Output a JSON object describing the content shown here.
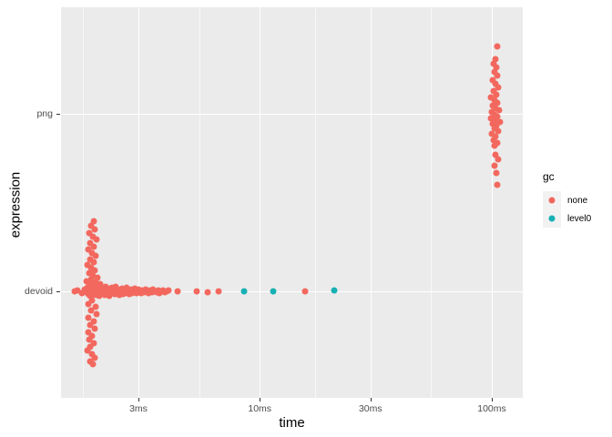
{
  "colors": {
    "panel_bg": "#EBEBEB",
    "grid": "#FFFFFF",
    "tick_text": "#4D4D4D",
    "axis_title_text": "#000000",
    "legend_key_bg": "#F2F2F2",
    "series_none": "#F3685E",
    "series_level0": "#17B0B4"
  },
  "legend": {
    "title": "gc",
    "items": [
      {
        "label": "none",
        "color": "#F3685E"
      },
      {
        "label": "level0",
        "color": "#17B0B4"
      }
    ]
  },
  "chart_data": {
    "type": "scatter",
    "title": "",
    "xlabel": "time",
    "ylabel": "expression",
    "x_scale": "log10",
    "x_unit": "ms",
    "x_range_ms": [
      1.4,
      140
    ],
    "grid": "on",
    "legend_position": "right",
    "x_ticks": [
      {
        "label": "3ms",
        "value": 3
      },
      {
        "label": "10ms",
        "value": 10
      },
      {
        "label": "30ms",
        "value": 30
      },
      {
        "label": "100ms",
        "value": 100
      }
    ],
    "x_minor_values": [
      1.73,
      5.48,
      17.32,
      54.77
    ],
    "y_categories": [
      "png",
      "devoid"
    ],
    "point_format": "[time_ms, y_jitter_px]",
    "series": [
      {
        "name": "none",
        "color": "#F3685E",
        "points": {
          "devoid": [
            [
              1.59,
              0
            ],
            [
              1.64,
              -1
            ],
            [
              1.71,
              2
            ],
            [
              1.76,
              -2
            ],
            [
              1.79,
              1
            ],
            [
              1.81,
              -4
            ],
            [
              1.83,
              3
            ],
            [
              1.84,
              -1
            ],
            [
              1.86,
              5
            ],
            [
              1.88,
              -6
            ],
            [
              1.88,
              2
            ],
            [
              1.9,
              -3
            ],
            [
              1.91,
              4
            ],
            [
              1.91,
              -1
            ],
            [
              1.93,
              1
            ],
            [
              1.95,
              -5
            ],
            [
              1.95,
              3
            ],
            [
              1.97,
              0
            ],
            [
              1.98,
              -3
            ],
            [
              1.98,
              4
            ],
            [
              2.0,
              -1
            ],
            [
              2.02,
              2
            ],
            [
              2.02,
              -6
            ],
            [
              2.04,
              5
            ],
            [
              2.06,
              -2
            ],
            [
              2.06,
              1
            ],
            [
              2.08,
              -4
            ],
            [
              2.1,
              3
            ],
            [
              2.1,
              0
            ],
            [
              2.12,
              -2
            ],
            [
              2.14,
              4
            ],
            [
              2.16,
              -5
            ],
            [
              2.16,
              1
            ],
            [
              2.18,
              -1
            ],
            [
              2.2,
              3
            ],
            [
              2.22,
              -3
            ],
            [
              2.22,
              0
            ],
            [
              2.24,
              5
            ],
            [
              2.26,
              -2
            ],
            [
              2.28,
              2
            ],
            [
              2.3,
              -4
            ],
            [
              2.33,
              1
            ],
            [
              2.35,
              -1
            ],
            [
              2.37,
              3
            ],
            [
              2.39,
              -5
            ],
            [
              2.41,
              0
            ],
            [
              2.43,
              2
            ],
            [
              2.46,
              -2
            ],
            [
              2.48,
              4
            ],
            [
              2.5,
              -1
            ],
            [
              2.52,
              1
            ],
            [
              2.55,
              -3
            ],
            [
              2.57,
              3
            ],
            [
              2.59,
              0
            ],
            [
              2.62,
              -2
            ],
            [
              2.64,
              2
            ],
            [
              2.66,
              -4
            ],
            [
              2.69,
              1
            ],
            [
              2.71,
              -1
            ],
            [
              2.74,
              3
            ],
            [
              2.76,
              0
            ],
            [
              2.78,
              -2
            ],
            [
              2.81,
              2
            ],
            [
              2.83,
              -1
            ],
            [
              2.86,
              1
            ],
            [
              2.89,
              -3
            ],
            [
              2.91,
              0
            ],
            [
              2.94,
              2
            ],
            [
              2.96,
              -1
            ],
            [
              2.99,
              1
            ],
            [
              3.01,
              -2
            ],
            [
              3.04,
              0
            ],
            [
              3.09,
              2
            ],
            [
              3.12,
              -1
            ],
            [
              3.18,
              1
            ],
            [
              3.23,
              -2
            ],
            [
              3.26,
              0
            ],
            [
              3.32,
              2
            ],
            [
              3.38,
              -1
            ],
            [
              3.44,
              1
            ],
            [
              3.47,
              -2
            ],
            [
              3.53,
              0
            ],
            [
              3.6,
              1
            ],
            [
              3.66,
              -1
            ],
            [
              3.7,
              2
            ],
            [
              3.76,
              0
            ],
            [
              3.83,
              -1
            ],
            [
              3.9,
              1
            ],
            [
              3.96,
              0
            ],
            [
              4.03,
              -1
            ],
            [
              4.43,
              0
            ],
            [
              5.33,
              0
            ],
            [
              5.97,
              1
            ],
            [
              6.62,
              0
            ],
            [
              15.7,
              0
            ],
            [
              1.93,
              -77
            ],
            [
              1.88,
              -72
            ],
            [
              1.95,
              -68
            ],
            [
              1.84,
              -64
            ],
            [
              1.91,
              -60
            ],
            [
              1.98,
              -57
            ],
            [
              1.86,
              -53
            ],
            [
              1.93,
              -49
            ],
            [
              1.83,
              -46
            ],
            [
              1.9,
              -42
            ],
            [
              1.97,
              -39
            ],
            [
              1.86,
              -35
            ],
            [
              1.93,
              -32
            ],
            [
              1.81,
              -29
            ],
            [
              1.88,
              -26
            ],
            [
              1.95,
              -23
            ],
            [
              1.84,
              -20
            ],
            [
              1.91,
              -17
            ],
            [
              2.0,
              -15
            ],
            [
              1.88,
              -13
            ],
            [
              1.79,
              -11
            ],
            [
              1.97,
              -10
            ],
            [
              1.86,
              -8
            ],
            [
              2.06,
              -8
            ],
            [
              1.9,
              10
            ],
            [
              1.83,
              14
            ],
            [
              1.97,
              17
            ],
            [
              1.88,
              21
            ],
            [
              1.98,
              25
            ],
            [
              1.83,
              29
            ],
            [
              1.93,
              33
            ],
            [
              1.86,
              37
            ],
            [
              1.95,
              41
            ],
            [
              1.83,
              45
            ],
            [
              1.9,
              49
            ],
            [
              1.84,
              53
            ],
            [
              1.93,
              57
            ],
            [
              1.86,
              61
            ],
            [
              1.81,
              65
            ],
            [
              1.9,
              69
            ],
            [
              1.95,
              73
            ],
            [
              1.86,
              77
            ],
            [
              1.91,
              80
            ]
          ],
          "png": [
            [
              105.6,
              -74
            ],
            [
              103.7,
              -60
            ],
            [
              101.8,
              -55
            ],
            [
              104.6,
              -51
            ],
            [
              102.7,
              -46
            ],
            [
              105.6,
              -42
            ],
            [
              100.9,
              -37
            ],
            [
              103.7,
              -33
            ],
            [
              106.5,
              -29
            ],
            [
              101.8,
              -25
            ],
            [
              104.6,
              -21
            ],
            [
              99.1,
              -18
            ],
            [
              102.7,
              -15
            ],
            [
              105.6,
              -12
            ],
            [
              100.9,
              -9
            ],
            [
              103.7,
              -6
            ],
            [
              107.5,
              -4
            ],
            [
              100.0,
              -2
            ],
            [
              102.7,
              1
            ],
            [
              105.6,
              3
            ],
            [
              99.1,
              5
            ],
            [
              103.7,
              7
            ],
            [
              108.5,
              9
            ],
            [
              100.9,
              11
            ],
            [
              104.6,
              13
            ],
            [
              102.7,
              16
            ],
            [
              106.5,
              19
            ],
            [
              100.0,
              22
            ],
            [
              103.7,
              25
            ],
            [
              101.8,
              29
            ],
            [
              105.6,
              32
            ],
            [
              102.7,
              35
            ],
            [
              103.7,
              45
            ],
            [
              106.5,
              50
            ],
            [
              102.7,
              57
            ],
            [
              104.6,
              65
            ],
            [
              105.6,
              78
            ]
          ]
        }
      },
      {
        "name": "level0",
        "color": "#17B0B4",
        "points": {
          "devoid": [
            [
              8.55,
              0
            ],
            [
              11.4,
              0
            ],
            [
              20.9,
              -1
            ]
          ]
        }
      }
    ]
  }
}
